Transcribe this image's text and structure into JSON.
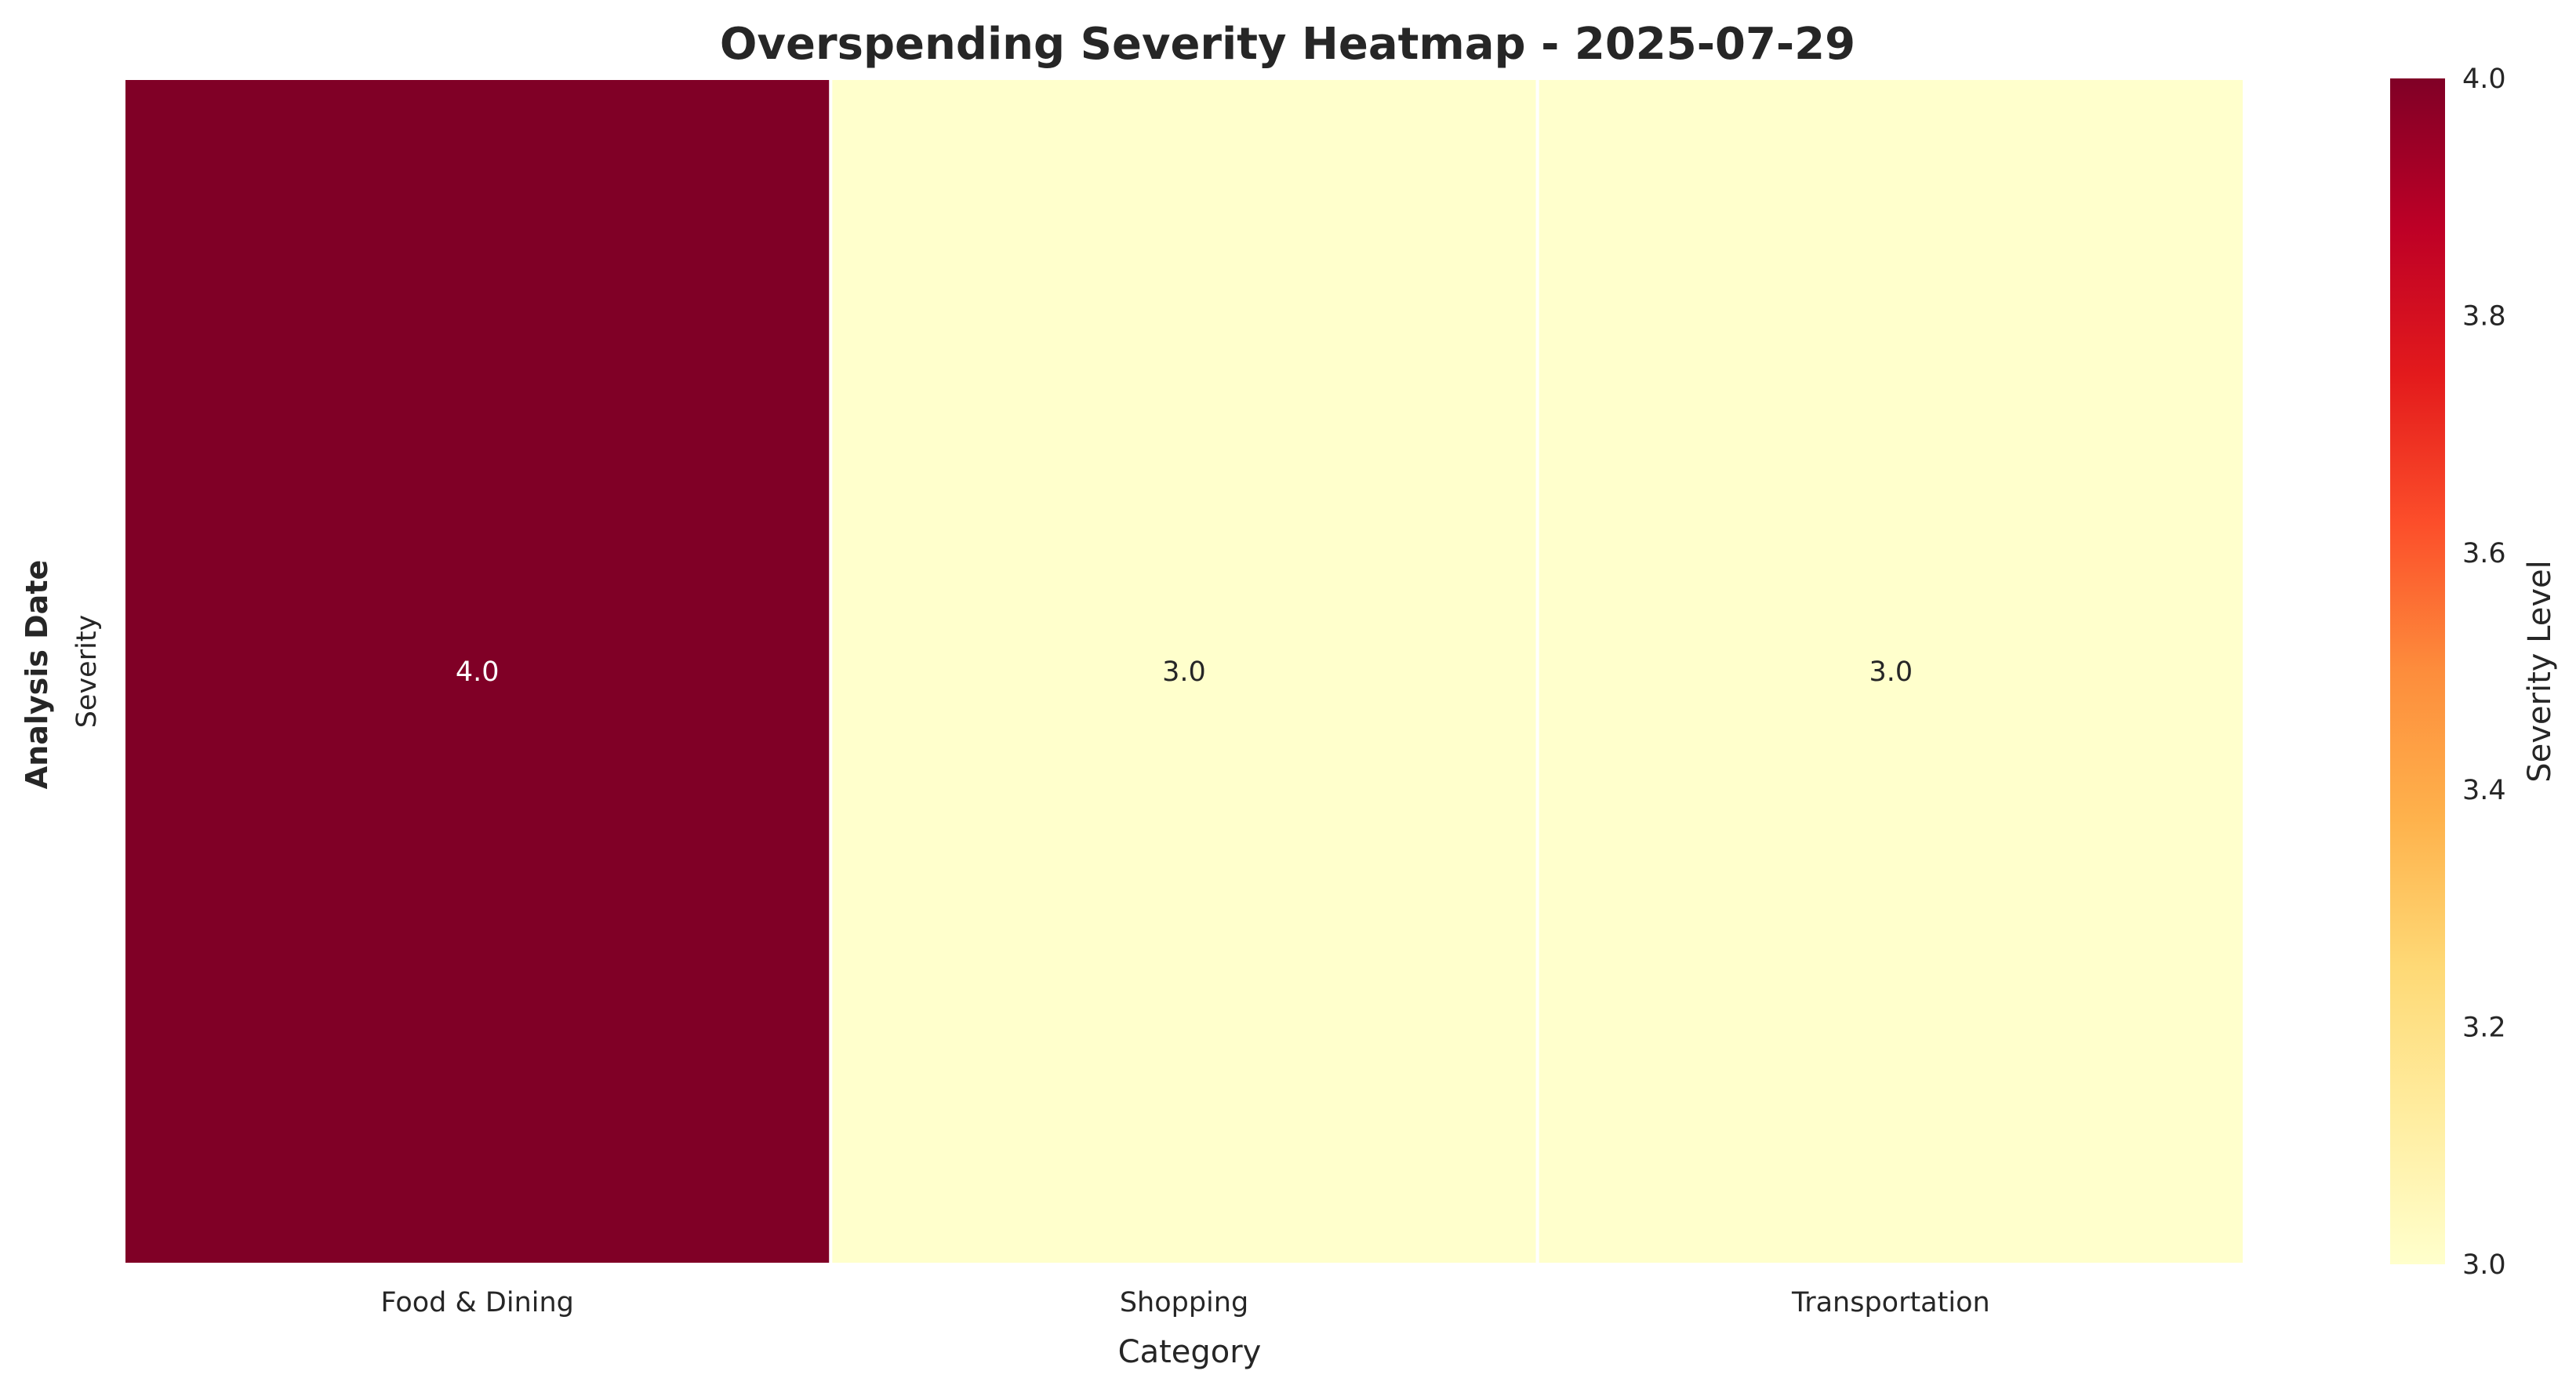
{
  "chart_data": {
    "type": "heatmap",
    "title": "Overspending Severity Heatmap - 2025-07-29",
    "xlabel": "Category",
    "ylabel": "Analysis Date",
    "categories": [
      "Food & Dining",
      "Shopping",
      "Transportation"
    ],
    "rows": [
      "Severity"
    ],
    "values": [
      [
        4.0,
        3.0,
        3.0
      ]
    ],
    "value_labels": [
      "4.0",
      "3.0",
      "3.0"
    ],
    "colorbar": {
      "label": "Severity Level",
      "range": [
        3.0,
        4.0
      ],
      "ticks": [
        "3.0",
        "3.2",
        "3.4",
        "3.6",
        "3.8",
        "4.0"
      ],
      "colormap": "YlOrRd",
      "stops": [
        "#ffffcc",
        "#ffeda0",
        "#fed976",
        "#feb24c",
        "#fd8d3c",
        "#fc4e2a",
        "#e31a1c",
        "#bd0026",
        "#800026"
      ]
    },
    "grid": false,
    "legend": "right"
  }
}
